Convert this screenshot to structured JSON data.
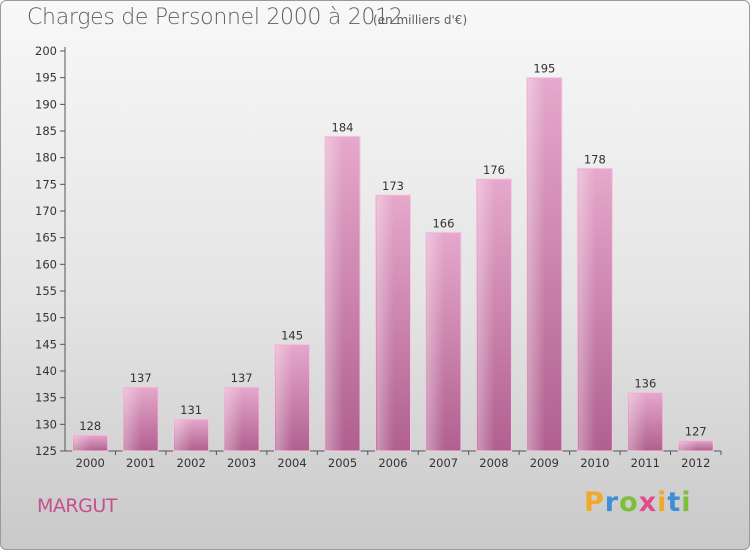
{
  "header": {
    "title": "Charges de Personnel 2000 à 2012",
    "unit": "(en milliers d'€)"
  },
  "footer": {
    "place": "MARGUT",
    "logo_letters": [
      "P",
      "r",
      "o",
      "x",
      "i",
      "t",
      "i"
    ],
    "logo_colors": [
      "#f0a92a",
      "#3d8fd8",
      "#7bbf3a",
      "#e34b8f",
      "#f0a92a",
      "#3d8fd8",
      "#7bbf3a"
    ]
  },
  "chart_data": {
    "type": "bar",
    "title": "Charges de Personnel 2000 à 2012",
    "subtitle": "(en milliers d'€)",
    "xlabel": "",
    "ylabel": "",
    "categories": [
      "2000",
      "2001",
      "2002",
      "2003",
      "2004",
      "2005",
      "2006",
      "2007",
      "2008",
      "2009",
      "2010",
      "2011",
      "2012"
    ],
    "values": [
      128,
      137,
      131,
      137,
      145,
      184,
      173,
      166,
      176,
      195,
      178,
      136,
      127
    ],
    "ylim": [
      125,
      200
    ],
    "yticks": [
      125,
      130,
      135,
      140,
      145,
      150,
      155,
      160,
      165,
      170,
      175,
      180,
      185,
      190,
      195,
      200
    ],
    "grid": false,
    "legend": "none",
    "bar_color": "#d98cb8"
  }
}
